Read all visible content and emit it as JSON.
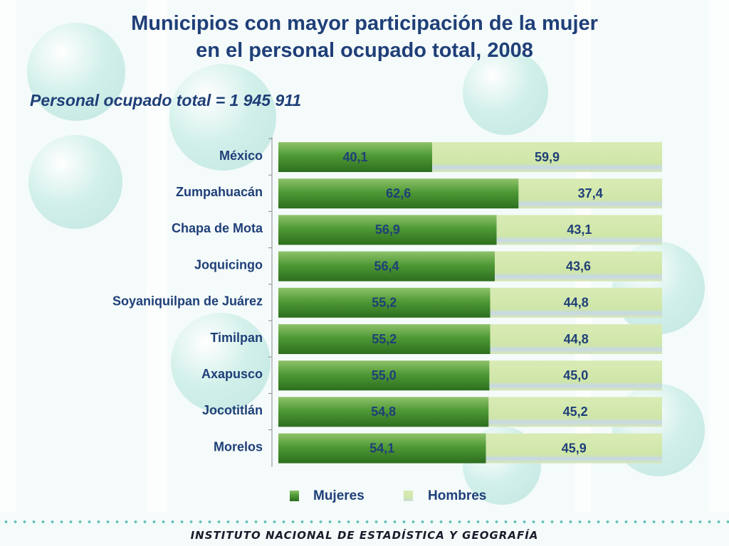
{
  "title_line1": "Municipios con mayor participación de la mujer",
  "title_line2": "en el personal ocupado total, 2008",
  "subtitle": "Personal ocupado total = 1 945 911",
  "footer": "INSTITUTO NACIONAL  DE ESTADÍSTICA Y GEOGRAFÍA",
  "colors": {
    "mujeres": "#3d8a2a",
    "hombres": "#cde4a6",
    "text": "#1f3f78"
  },
  "chart_data": {
    "type": "bar",
    "orientation": "horizontal",
    "stacked": true,
    "percent_stacked": true,
    "categories": [
      "México",
      "Zumpahuacán",
      "Chapa de Mota",
      "Joquicingo",
      "Soyaniquilpan de Juárez",
      "Timilpan",
      "Axapusco",
      "Jocotitlán",
      "Morelos"
    ],
    "series": [
      {
        "name": "Mujeres",
        "values": [
          40.1,
          62.6,
          56.9,
          56.4,
          55.2,
          55.2,
          55.0,
          54.8,
          54.1
        ],
        "labels": [
          "40,1",
          "62,6",
          "56,9",
          "56,4",
          "55,2",
          "55,2",
          "55,0",
          "54,8",
          "54,1"
        ]
      },
      {
        "name": "Hombres",
        "values": [
          59.9,
          37.4,
          43.1,
          43.6,
          44.8,
          44.8,
          45.0,
          45.2,
          45.9
        ],
        "labels": [
          "59,9",
          "37,4",
          "43,1",
          "43,6",
          "44,8",
          "44,8",
          "45,0",
          "45,2",
          "45,9"
        ]
      }
    ],
    "xlim": [
      0,
      100
    ],
    "legend_position": "bottom",
    "grid": false
  }
}
